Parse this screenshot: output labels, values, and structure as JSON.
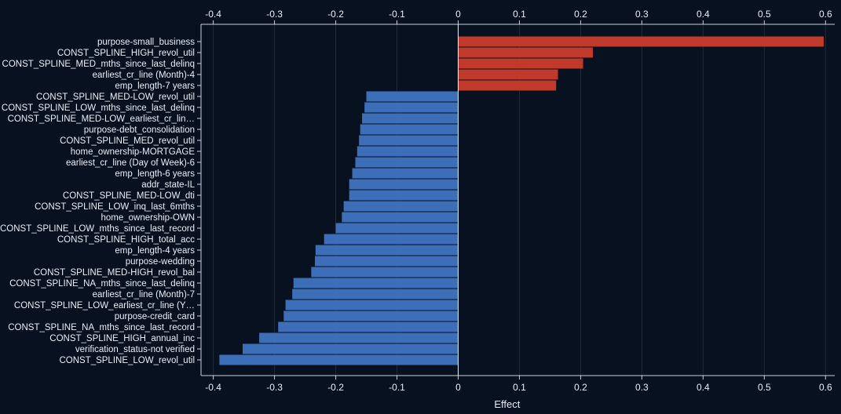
{
  "chart_data": {
    "type": "bar",
    "orientation": "horizontal",
    "xlabel": "Effect",
    "xlim": [
      -0.42,
      0.615
    ],
    "xticks": [
      -0.4,
      -0.3,
      -0.2,
      -0.1,
      0,
      0.1,
      0.2,
      0.3,
      0.4,
      0.5,
      0.6
    ],
    "xtick_labels": [
      "-0.4",
      "-0.3",
      "-0.2",
      "-0.1",
      "0",
      "0.1",
      "0.2",
      "0.3",
      "0.4",
      "0.5",
      "0.6"
    ],
    "grid": "vertical",
    "colors": {
      "positive": "#c0392b",
      "negative": "#3d6eb8",
      "background": "#07111f",
      "grid": "#1f2a3b",
      "axis": "#c7ced9",
      "text": "#e9eef7"
    },
    "categories": [
      "purpose-small_business",
      "CONST_SPLINE_HIGH_revol_util",
      "CONST_SPLINE_MED_mths_since_last_delinq",
      "earliest_cr_line (Month)-4",
      "emp_length-7 years",
      "CONST_SPLINE_MED-LOW_revol_util",
      "CONST_SPLINE_LOW_mths_since_last_delinq",
      "CONST_SPLINE_MED-LOW_earliest_cr_lin…",
      "purpose-debt_consolidation",
      "CONST_SPLINE_MED_revol_util",
      "home_ownership-MORTGAGE",
      "earliest_cr_line (Day of Week)-6",
      "emp_length-6 years",
      "addr_state-IL",
      "CONST_SPLINE_MED-LOW_dti",
      "CONST_SPLINE_LOW_inq_last_6mths",
      "home_ownership-OWN",
      "CONST_SPLINE_LOW_mths_since_last_record",
      "CONST_SPLINE_HIGH_total_acc",
      "emp_length-4 years",
      "purpose-wedding",
      "CONST_SPLINE_MED-HIGH_revol_bal",
      "CONST_SPLINE_NA_mths_since_last_delinq",
      "earliest_cr_line (Month)-7",
      "CONST_SPLINE_LOW_earliest_cr_line (Y…",
      "purpose-credit_card",
      "CONST_SPLINE_NA_mths_since_last_record",
      "CONST_SPLINE_HIGH_annual_inc",
      "verification_status-not verified",
      "CONST_SPLINE_LOW_revol_util"
    ],
    "values": [
      0.597,
      0.22,
      0.204,
      0.163,
      0.16,
      -0.15,
      -0.153,
      -0.157,
      -0.16,
      -0.162,
      -0.165,
      -0.168,
      -0.173,
      -0.178,
      -0.178,
      -0.187,
      -0.19,
      -0.2,
      -0.219,
      -0.233,
      -0.234,
      -0.24,
      -0.269,
      -0.271,
      -0.282,
      -0.285,
      -0.294,
      -0.325,
      -0.352,
      -0.39
    ]
  }
}
